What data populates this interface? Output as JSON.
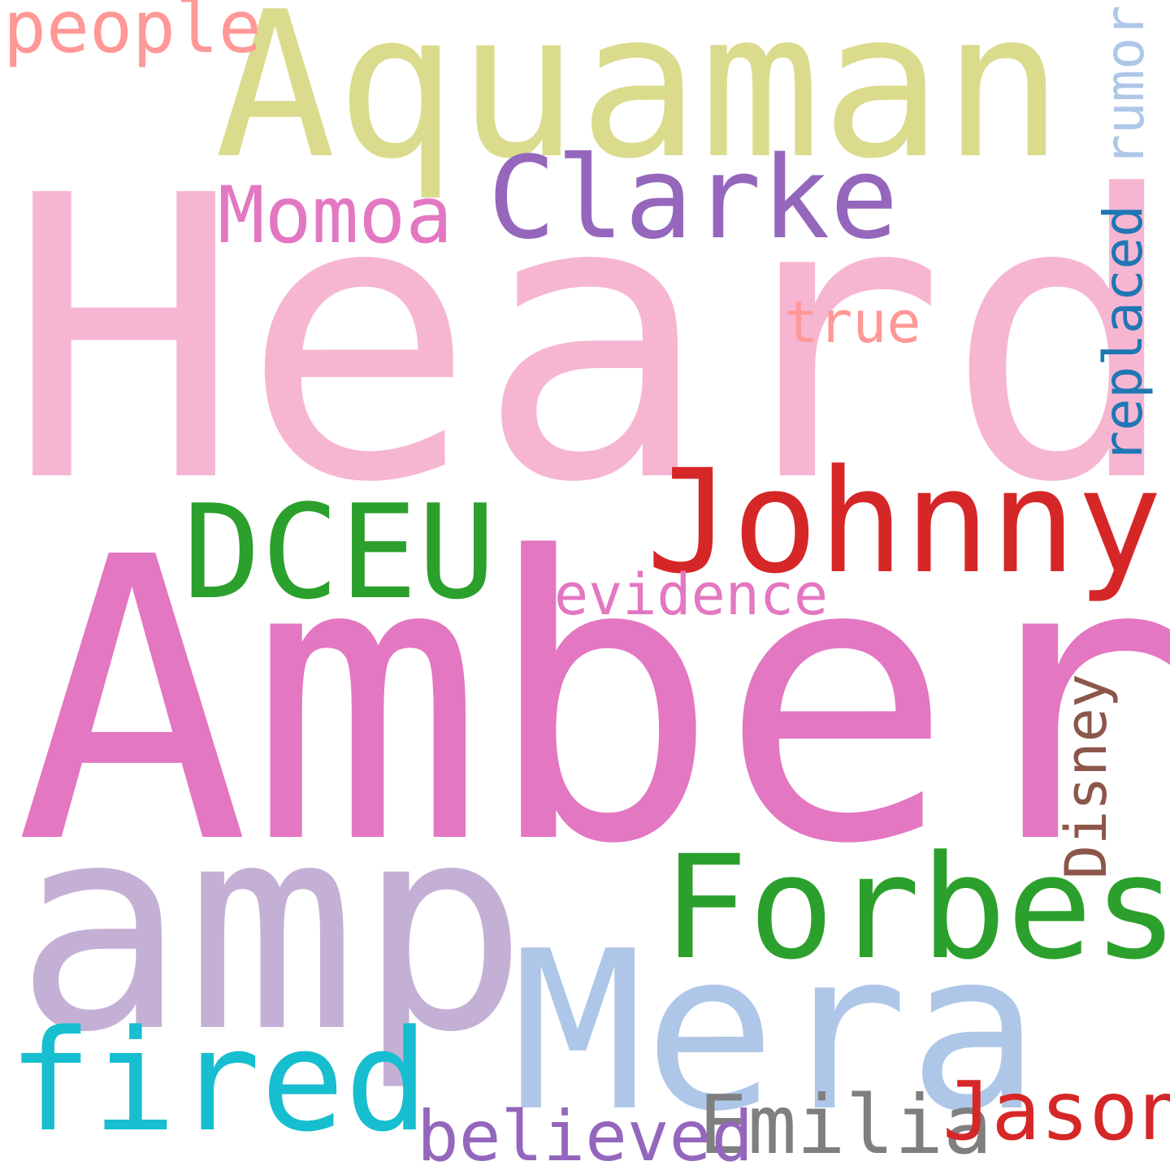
{
  "background": "#ffffff",
  "words": {
    "heard": {
      "text": "Heard",
      "color": "#f6b6d2"
    },
    "amber": {
      "text": "Amber",
      "color": "#e377c2"
    },
    "aquaman": {
      "text": "Aquaman",
      "color": "#dbdb8d"
    },
    "amp": {
      "text": "amp",
      "color": "#c5b0d5"
    },
    "mera": {
      "text": "Mera",
      "color": "#aec7e8"
    },
    "forbes": {
      "text": "Forbes",
      "color": "#2ca02c"
    },
    "johnny": {
      "text": "Johnny",
      "color": "#d62728"
    },
    "dceu": {
      "text": "DCEU",
      "color": "#2ca02c"
    },
    "clarke": {
      "text": "Clarke",
      "color": "#9467bd"
    },
    "fired": {
      "text": "fired",
      "color": "#17becf"
    },
    "emilia": {
      "text": "Emilia",
      "color": "#7f7f7f"
    },
    "jason": {
      "text": "Jason",
      "color": "#d62728"
    },
    "momoa": {
      "text": "Momoa",
      "color": "#e377c2"
    },
    "believed": {
      "text": "believed",
      "color": "#9467bd"
    },
    "people": {
      "text": "people",
      "color": "#ff9896"
    },
    "evidence": {
      "text": "evidence",
      "color": "#e377c2"
    },
    "true": {
      "text": "true",
      "color": "#ff9896"
    },
    "replaced": {
      "text": "replaced",
      "color": "#1f77b4"
    },
    "disney": {
      "text": "Disney",
      "color": "#8c564b"
    },
    "rumor": {
      "text": "rumor",
      "color": "#aec7e8"
    }
  }
}
